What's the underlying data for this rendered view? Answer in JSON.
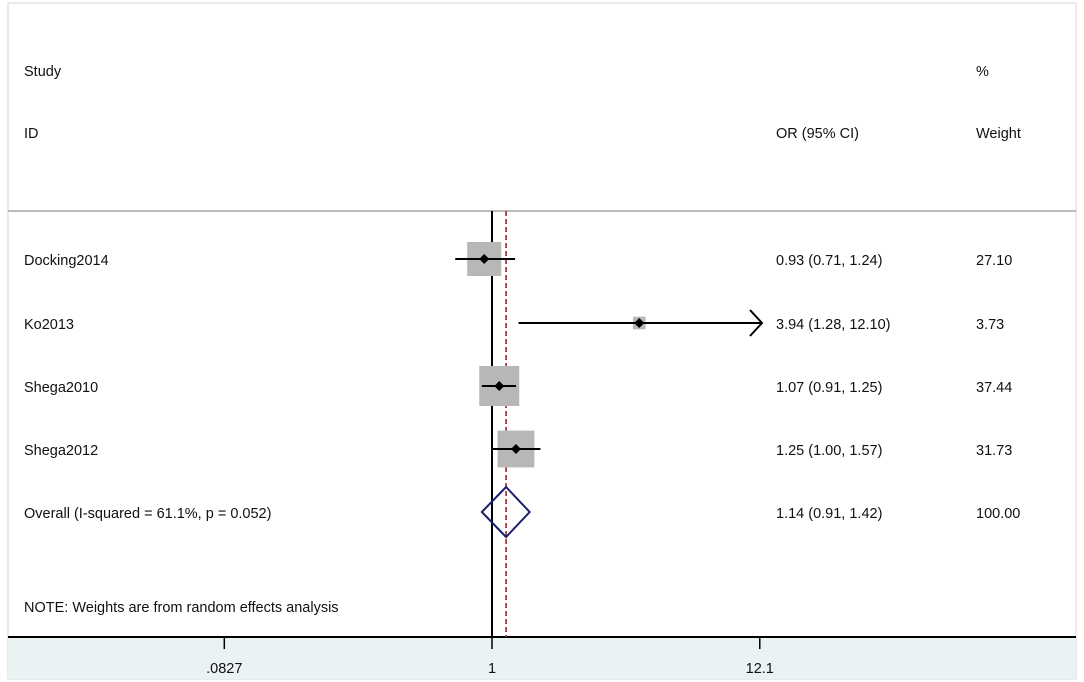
{
  "chart_data": {
    "type": "forest",
    "headers": {
      "study_line1": "Study",
      "study_line2": "ID",
      "effect": "OR (95% CI)",
      "weight_line1": "%",
      "weight_line2": "Weight"
    },
    "scale": "log",
    "x_ticks": [
      {
        "value": 0.0827,
        "label": ".0827"
      },
      {
        "value": 1,
        "label": "1"
      },
      {
        "value": 12.1,
        "label": "12.1"
      }
    ],
    "null_line": 1,
    "studies": [
      {
        "id": "Docking2014",
        "or": 0.93,
        "lower": 0.71,
        "upper": 1.24,
        "or_text": "0.93 (0.71, 1.24)",
        "weight": 27.1,
        "weight_text": "27.10"
      },
      {
        "id": "Ko2013",
        "or": 3.94,
        "lower": 1.28,
        "upper": 12.1,
        "or_text": "3.94 (1.28, 12.10)",
        "weight": 3.73,
        "weight_text": "3.73",
        "upper_truncated": true
      },
      {
        "id": "Shega2010",
        "or": 1.07,
        "lower": 0.91,
        "upper": 1.25,
        "or_text": "1.07 (0.91, 1.25)",
        "weight": 37.44,
        "weight_text": "37.44"
      },
      {
        "id": "Shega2012",
        "or": 1.25,
        "lower": 1.0,
        "upper": 1.57,
        "or_text": "1.25 (1.00, 1.57)",
        "weight": 31.73,
        "weight_text": "31.73"
      }
    ],
    "overall": {
      "label": "Overall  (I-squared = 61.1%, p = 0.052)",
      "or": 1.14,
      "lower": 0.91,
      "upper": 1.42,
      "or_text": "1.14 (0.91, 1.42)",
      "weight_text": "100.00"
    },
    "note": "NOTE: Weights are from random effects analysis",
    "colors": {
      "box": "#b7b7b7",
      "point": "#000000",
      "ci_line": "#000000",
      "diamond": "#1a1f6e",
      "overall_line": "#8b1a1a",
      "axis_band": "#eaf2f3",
      "divider": "#bcbcbc"
    }
  }
}
